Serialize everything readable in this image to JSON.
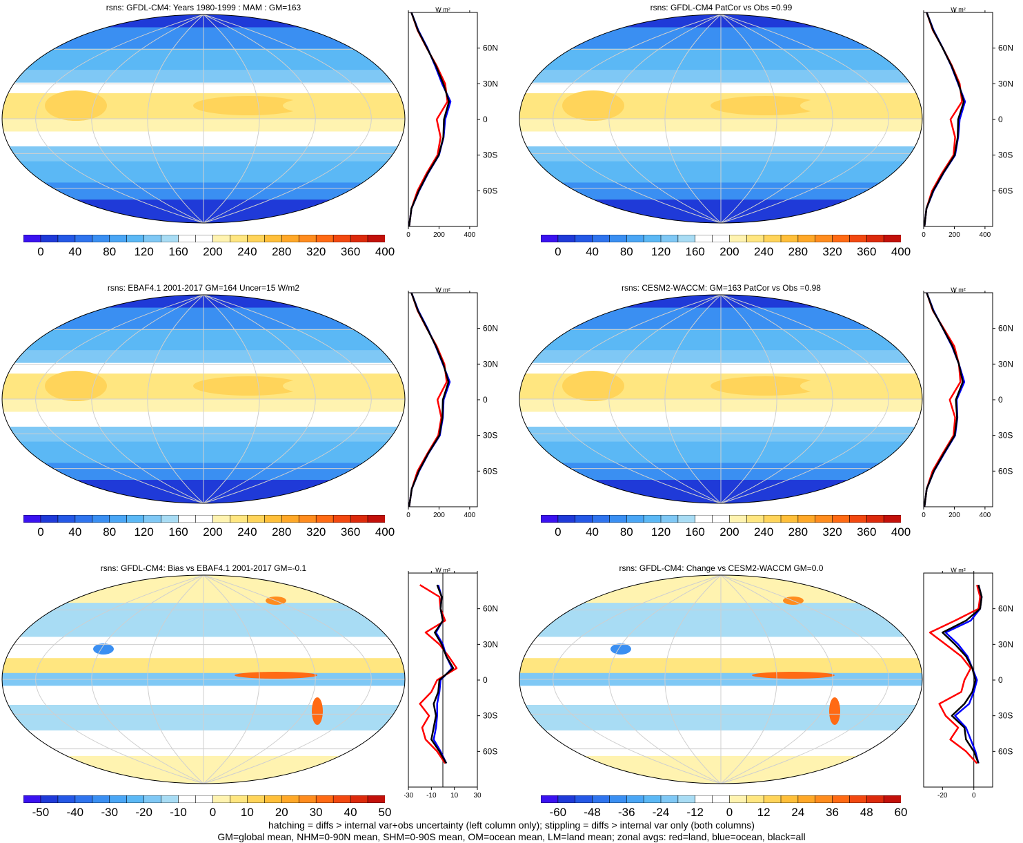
{
  "panels": [
    {
      "title": "rsns: GFDL-CM4: Years 1980-1999 : MAM : GM=163",
      "kind": "field",
      "colorbar": {
        "labels": [
          "0",
          "40",
          "80",
          "120",
          "160",
          "200",
          "240",
          "280",
          "320",
          "360",
          "400"
        ]
      },
      "zonal": {
        "unit": "W m²",
        "xticks": [
          "0",
          "200",
          "400"
        ],
        "xlim": [
          0,
          450
        ]
      }
    },
    {
      "title": "rsns: GFDL-CM4 PatCor vs Obs =0.99",
      "kind": "field",
      "colorbar": {
        "labels": [
          "0",
          "40",
          "80",
          "120",
          "160",
          "200",
          "240",
          "280",
          "320",
          "360",
          "400"
        ]
      },
      "zonal": {
        "unit": "W m²",
        "xticks": [
          "0",
          "200",
          "400"
        ],
        "xlim": [
          0,
          450
        ]
      }
    },
    {
      "title": "rsns: EBAF4.1 2001-2017 GM=164 Uncer=15 W/m2",
      "kind": "field",
      "colorbar": {
        "labels": [
          "0",
          "40",
          "80",
          "120",
          "160",
          "200",
          "240",
          "280",
          "320",
          "360",
          "400"
        ]
      },
      "zonal": {
        "unit": "W m²",
        "xticks": [
          "0",
          "200",
          "400"
        ],
        "xlim": [
          0,
          450
        ]
      }
    },
    {
      "title": "rsns: CESM2-WACCM: GM=163 PatCor vs Obs =0.98",
      "kind": "field",
      "colorbar": {
        "labels": [
          "0",
          "40",
          "80",
          "120",
          "160",
          "200",
          "240",
          "280",
          "320",
          "360",
          "400"
        ]
      },
      "zonal": {
        "unit": "W m²",
        "xticks": [
          "0",
          "200",
          "400"
        ],
        "xlim": [
          0,
          450
        ]
      }
    },
    {
      "title": "rsns: GFDL-CM4: Bias vs EBAF4.1 2001-2017 GM=-0.1",
      "kind": "diff",
      "colorbar": {
        "labels": [
          "-50",
          "-40",
          "-30",
          "-20",
          "-10",
          "0",
          "10",
          "20",
          "30",
          "40",
          "50"
        ]
      },
      "zonal": {
        "unit": "W m²",
        "xticks": [
          "-30",
          "-10",
          "10",
          "30"
        ],
        "xlim": [
          -30,
          30
        ]
      }
    },
    {
      "title": "rsns: GFDL-CM4: Change vs CESM2-WACCM GM=0.0",
      "kind": "diff",
      "colorbar": {
        "labels": [
          "-60",
          "-48",
          "-36",
          "-24",
          "-12",
          "0",
          "12",
          "24",
          "36",
          "48",
          "60"
        ]
      },
      "zonal": {
        "unit": "W m²",
        "xticks": [
          "-20",
          "0"
        ],
        "xlim": [
          -32,
          12
        ]
      }
    }
  ],
  "lat_labels": [
    "60N",
    "30N",
    "0",
    "30S",
    "60S"
  ],
  "chart_data": [
    {
      "type": "line",
      "title": "rsns: GFDL-CM4: Years 1980-1999 : MAM : GM=163",
      "x_axis": "latitude",
      "x": [
        -90,
        -75,
        -60,
        -45,
        -30,
        -15,
        0,
        15,
        30,
        45,
        60,
        75,
        90
      ],
      "series": [
        {
          "name": "red=land",
          "values": [
            5,
            20,
            60,
            120,
            190,
            210,
            185,
            255,
            240,
            185,
            120,
            60,
            20
          ]
        },
        {
          "name": "blue=ocean",
          "values": [
            5,
            20,
            70,
            130,
            200,
            230,
            240,
            275,
            220,
            175,
            125,
            65,
            20
          ]
        },
        {
          "name": "black=all",
          "values": [
            5,
            20,
            68,
            128,
            198,
            228,
            232,
            265,
            228,
            180,
            122,
            62,
            20
          ]
        }
      ]
    },
    {
      "type": "line",
      "title": "rsns: GFDL-CM4 PatCor vs Obs =0.99",
      "x_axis": "latitude",
      "x": [
        -90,
        -75,
        -60,
        -45,
        -30,
        -15,
        0,
        15,
        30,
        45,
        60,
        75,
        90
      ],
      "series": [
        {
          "name": "red=land",
          "values": [
            5,
            18,
            55,
            120,
            195,
            205,
            175,
            250,
            235,
            185,
            125,
            60,
            20
          ]
        },
        {
          "name": "blue=ocean",
          "values": [
            5,
            18,
            65,
            130,
            205,
            225,
            235,
            270,
            225,
            180,
            125,
            65,
            20
          ]
        },
        {
          "name": "black=all",
          "values": [
            5,
            18,
            62,
            128,
            202,
            222,
            225,
            262,
            228,
            182,
            124,
            62,
            20
          ]
        }
      ]
    },
    {
      "type": "line",
      "title": "rsns: EBAF4.1 2001-2017 GM=164 Uncer=15 W/m2",
      "x_axis": "latitude",
      "x": [
        -90,
        -75,
        -60,
        -45,
        -30,
        -15,
        0,
        15,
        30,
        45,
        60,
        75,
        90
      ],
      "series": [
        {
          "name": "red=land",
          "values": [
            5,
            22,
            60,
            125,
            195,
            215,
            190,
            250,
            235,
            185,
            120,
            60,
            20
          ]
        },
        {
          "name": "blue=ocean",
          "values": [
            5,
            22,
            70,
            132,
            205,
            225,
            230,
            270,
            225,
            178,
            125,
            65,
            20
          ]
        },
        {
          "name": "black=all",
          "values": [
            5,
            22,
            68,
            130,
            202,
            222,
            225,
            262,
            228,
            180,
            122,
            62,
            20
          ]
        }
      ]
    },
    {
      "type": "line",
      "title": "rsns: CESM2-WACCM: GM=163 PatCor vs Obs =0.98",
      "x_axis": "latitude",
      "x": [
        -90,
        -75,
        -60,
        -45,
        -30,
        -15,
        0,
        15,
        30,
        45,
        60,
        75,
        90
      ],
      "series": [
        {
          "name": "red=land",
          "values": [
            5,
            20,
            58,
            125,
            195,
            205,
            170,
            240,
            230,
            200,
            130,
            60,
            20
          ]
        },
        {
          "name": "blue=ocean",
          "values": [
            5,
            20,
            68,
            135,
            205,
            220,
            215,
            265,
            230,
            185,
            125,
            65,
            20
          ]
        },
        {
          "name": "black=all",
          "values": [
            5,
            20,
            66,
            132,
            202,
            218,
            210,
            255,
            230,
            188,
            126,
            62,
            20
          ]
        }
      ]
    },
    {
      "type": "line",
      "title": "rsns: GFDL-CM4: Bias vs EBAF4.1 2001-2017 GM=-0.1",
      "x_axis": "latitude",
      "x": [
        -70,
        -60,
        -50,
        -40,
        -30,
        -20,
        -10,
        0,
        10,
        20,
        30,
        40,
        50,
        60,
        70,
        80
      ],
      "series": [
        {
          "name": "red=land",
          "values": [
            2,
            -5,
            -15,
            -18,
            -12,
            -20,
            -10,
            -5,
            12,
            5,
            -3,
            -15,
            2,
            -2,
            -3,
            -20
          ]
        },
        {
          "name": "blue=ocean",
          "values": [
            3,
            -2,
            -8,
            -6,
            -5,
            -5,
            -3,
            -2,
            8,
            3,
            0,
            -6,
            0,
            -2,
            -1,
            -4
          ]
        },
        {
          "name": "black=all",
          "values": [
            3,
            -3,
            -10,
            -8,
            -6,
            -8,
            -4,
            -3,
            9,
            3,
            -1,
            -7,
            0,
            -2,
            -1,
            -5
          ]
        }
      ]
    },
    {
      "type": "line",
      "title": "rsns: GFDL-CM4: Change vs CESM2-WACCM GM=0.0",
      "x_axis": "latitude",
      "x": [
        -70,
        -60,
        -50,
        -40,
        -30,
        -20,
        -10,
        0,
        10,
        20,
        30,
        40,
        50,
        60,
        70,
        80
      ],
      "series": [
        {
          "name": "red=land",
          "values": [
            2,
            -5,
            -15,
            -10,
            -18,
            -22,
            -8,
            -6,
            -2,
            -8,
            -18,
            -28,
            -12,
            3,
            4,
            2
          ]
        },
        {
          "name": "blue=ocean",
          "values": [
            3,
            1,
            -2,
            -5,
            -12,
            -3,
            0,
            2,
            -1,
            -4,
            -10,
            -18,
            -2,
            4,
            5,
            3
          ]
        },
        {
          "name": "black=all",
          "values": [
            3,
            0,
            -5,
            -6,
            -14,
            -6,
            -1,
            1,
            -1,
            -5,
            -12,
            -20,
            -5,
            4,
            5,
            3
          ]
        }
      ]
    }
  ],
  "colors": {
    "field_scale": [
      "#3a12f0",
      "#1f3ad8",
      "#2458e6",
      "#2f74ee",
      "#3a8ff2",
      "#4aa6f5",
      "#5bb8f5",
      "#7fc8f5",
      "#a8dcf4",
      "#ffffff",
      "#ffffff",
      "#fff3b0",
      "#ffe680",
      "#ffd45a",
      "#ffbf3a",
      "#ffa828",
      "#ff8c1e",
      "#ff6a14",
      "#f24810",
      "#dc2a0c",
      "#c2100a"
    ],
    "diff_scale": [
      "#3a12f0",
      "#1f3ad8",
      "#2458e6",
      "#2f74ee",
      "#3a8ff2",
      "#4aa6f5",
      "#5bb8f5",
      "#7fc8f5",
      "#a8dcf4",
      "#ffffff",
      "#ffffff",
      "#fff3b0",
      "#ffe680",
      "#ffd45a",
      "#ffbf3a",
      "#ffa828",
      "#ff8c1e",
      "#ff6a14",
      "#f24810",
      "#dc2a0c",
      "#c2100a"
    ],
    "land_line": "#ff0000",
    "ocean_line": "#0000ff",
    "all_line": "#000000"
  },
  "footer": [
    "hatching = diffs > internal var+obs uncertainty (left column only); stippling = diffs > internal var only (both columns)",
    "GM=global mean, NHM=0-90N mean, SHM=0-90S mean, OM=ocean mean, LM=land mean; zonal avgs: red=land, blue=ocean, black=all"
  ]
}
